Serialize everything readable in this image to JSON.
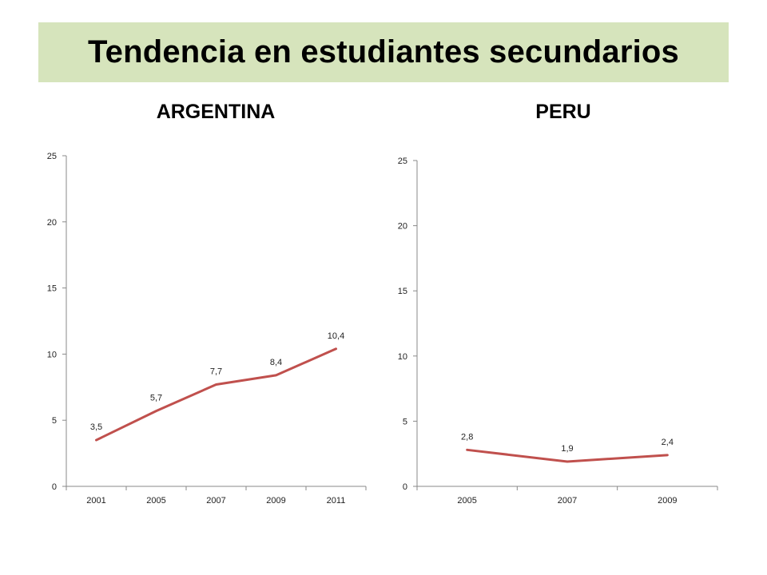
{
  "title": "Tendencia en estudiantes secundarios",
  "colors": {
    "banner": "#d6e4bc",
    "line": "#c0504d",
    "axis": "#888888"
  },
  "chart_data": [
    {
      "type": "line",
      "title": "ARGENTINA",
      "categories": [
        "2001",
        "2005",
        "2007",
        "2009",
        "2011"
      ],
      "series": [
        {
          "values": [
            3.5,
            5.7,
            7.7,
            8.4,
            10.4
          ],
          "labels": [
            "3,5",
            "5,7",
            "7,7",
            "8,4",
            "10,4"
          ]
        }
      ],
      "ylim": [
        0,
        25
      ],
      "yticks": [
        0,
        5,
        10,
        15,
        20,
        25
      ],
      "grid": false,
      "legend": "none"
    },
    {
      "type": "line",
      "title": "PERU",
      "categories": [
        "2005",
        "2007",
        "2009"
      ],
      "series": [
        {
          "values": [
            2.8,
            1.9,
            2.4
          ],
          "labels": [
            "2,8",
            "1,9",
            "2,4"
          ]
        }
      ],
      "ylim": [
        0,
        25
      ],
      "yticks": [
        0,
        5,
        10,
        15,
        20,
        25
      ],
      "grid": false,
      "legend": "none"
    }
  ]
}
